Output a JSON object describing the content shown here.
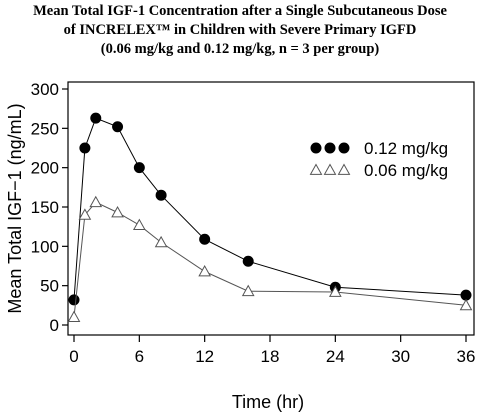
{
  "chart_data": {
    "type": "line",
    "title": [
      "Mean Total IGF-1 Concentration after a Single Subcutaneous Dose",
      "of INCRELEX™ in Children with Severe Primary IGFD",
      "(0.06 mg/kg and 0.12 mg/kg, n = 3 per group)"
    ],
    "xlabel": "Time  (hr)",
    "ylabel": "Mean  Total  IGF−1  (ng/mL)",
    "xlim": [
      0,
      36
    ],
    "ylim": [
      0,
      300
    ],
    "xticks": [
      0,
      6,
      12,
      18,
      24,
      30,
      36
    ],
    "yticks": [
      0,
      50,
      100,
      150,
      200,
      250,
      300
    ],
    "grid": false,
    "legend_position": "top-right",
    "series": [
      {
        "name": "0.12  mg/kg",
        "marker": "filled-circle",
        "color": "#000000",
        "x": [
          0,
          1,
          2,
          4,
          6,
          8,
          12,
          16,
          24,
          36
        ],
        "y": [
          32,
          225,
          263,
          252,
          200,
          165,
          109,
          81,
          48,
          38
        ]
      },
      {
        "name": "0.06  mg/kg",
        "marker": "open-triangle",
        "color": "#555555",
        "x": [
          0,
          1,
          2,
          4,
          6,
          8,
          12,
          16,
          24,
          36
        ],
        "y": [
          10,
          140,
          156,
          143,
          127,
          105,
          68,
          43,
          42,
          25
        ]
      }
    ]
  }
}
